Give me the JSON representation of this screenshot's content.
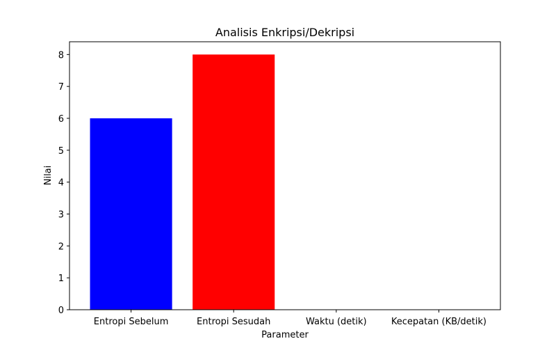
{
  "chart_data": {
    "type": "bar",
    "title": "Analisis Enkripsi/Dekripsi",
    "xlabel": "Parameter",
    "ylabel": "Nilai",
    "categories": [
      "Entropi Sebelum",
      "Entropi Sesudah",
      "Waktu (detik)",
      "Kecepatan (KB/detik)"
    ],
    "values": [
      6.0,
      8.0,
      0.0,
      0.0
    ],
    "colors": [
      "#0000ff",
      "#ff0000",
      "#008000",
      "#800080"
    ],
    "ylim": [
      0,
      8.4
    ],
    "yticks": [
      0,
      1,
      2,
      3,
      4,
      5,
      6,
      7,
      8
    ],
    "grid": false,
    "legend": "none"
  }
}
